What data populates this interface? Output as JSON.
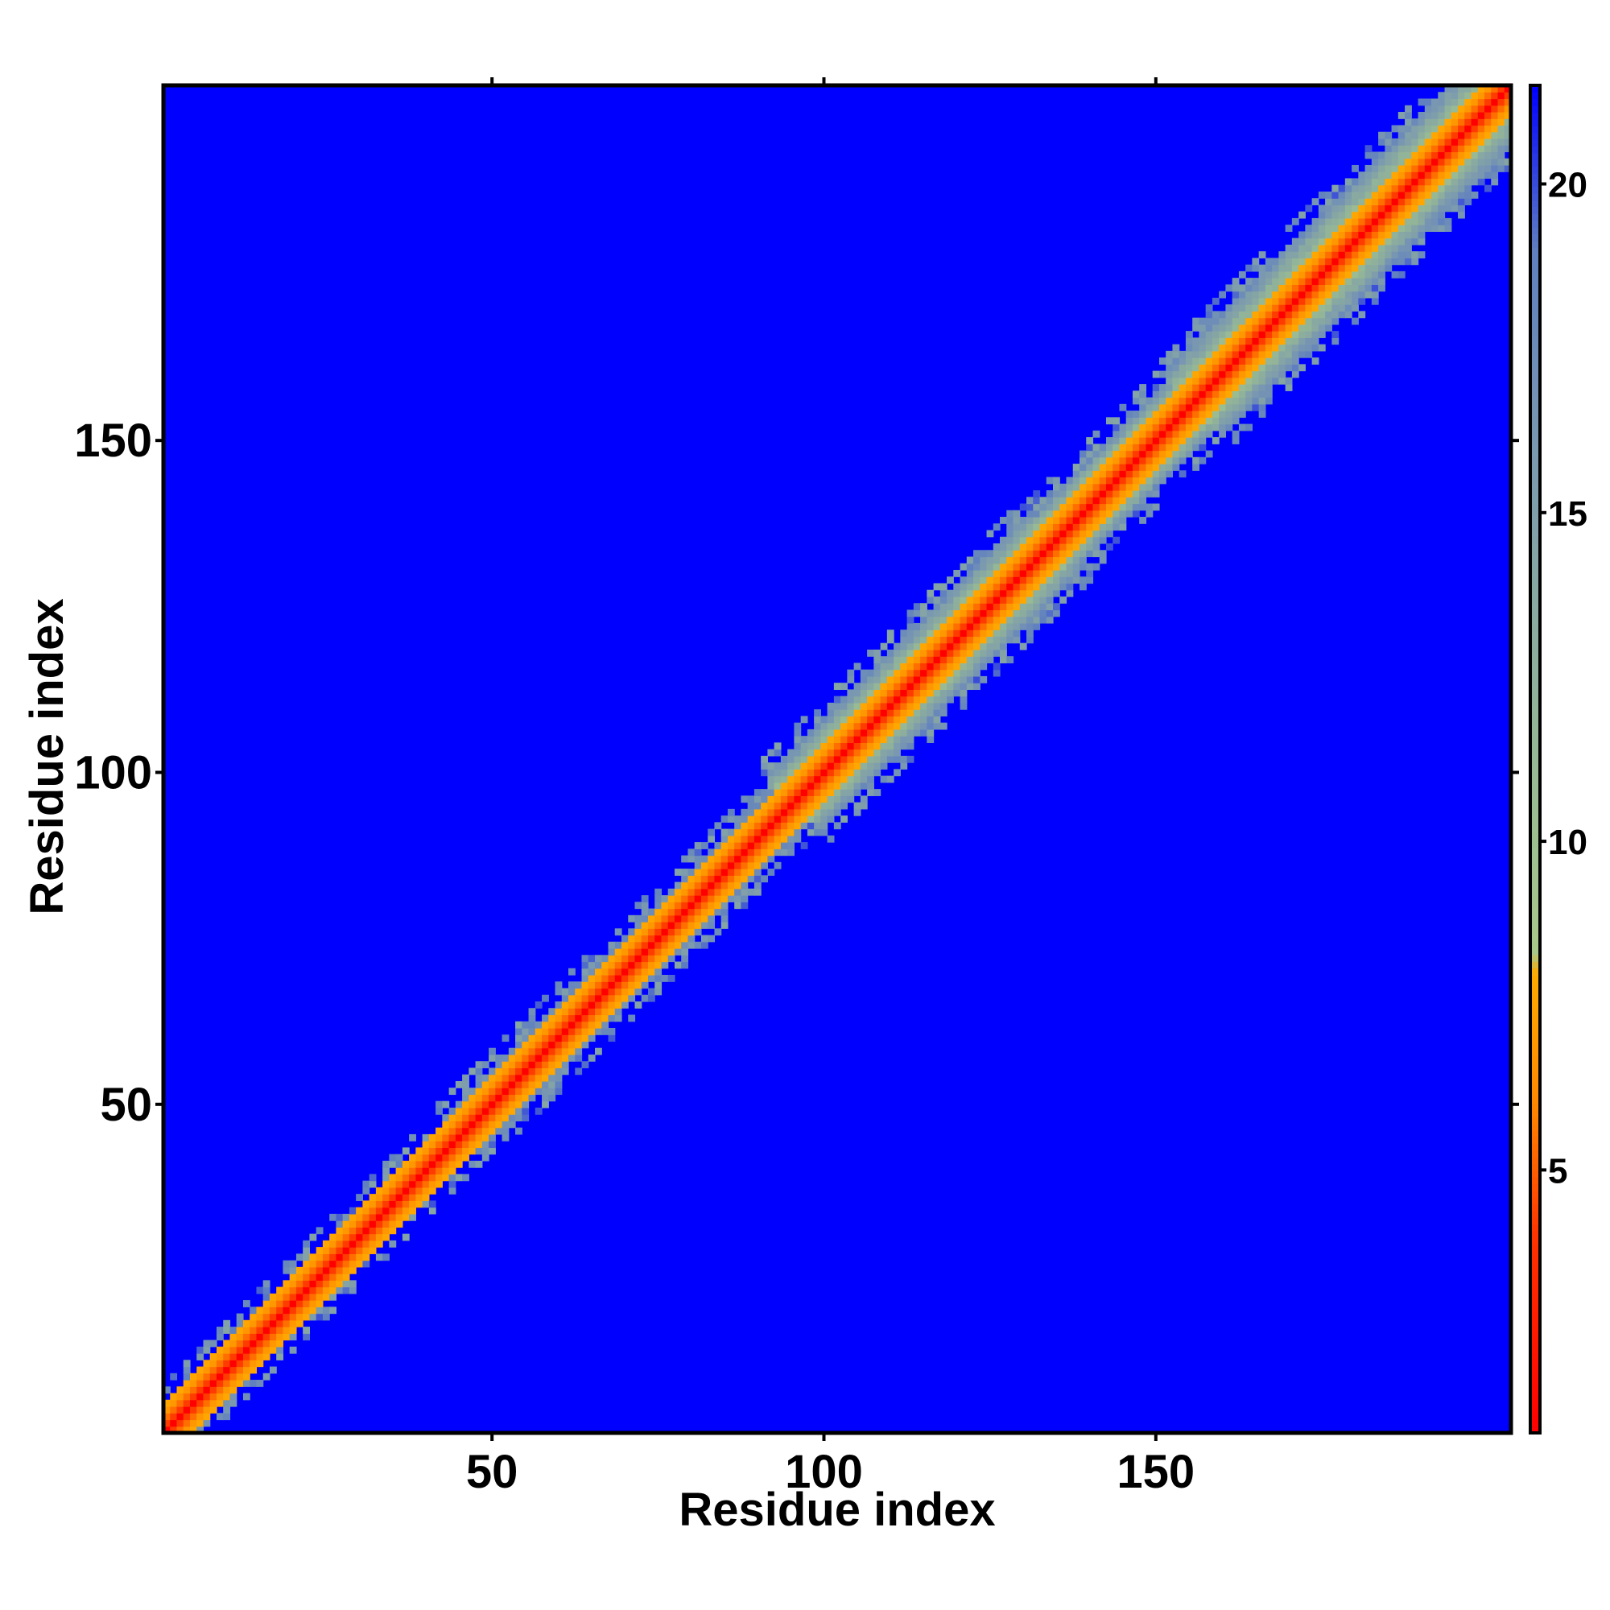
{
  "chart_data": {
    "type": "heatmap",
    "title": "",
    "xlabel": "Residue index",
    "ylabel": "Residue index",
    "x_range": [
      1,
      203
    ],
    "y_range": [
      1,
      203
    ],
    "x_ticks": [
      50,
      100,
      150
    ],
    "y_ticks": [
      50,
      100,
      150
    ],
    "colorbar": {
      "range": [
        1,
        21.5
      ],
      "ticks": [
        5,
        10,
        15,
        20
      ],
      "stops": [
        {
          "value": 1,
          "color": "#ff0000"
        },
        {
          "value": 4,
          "color": "#ff3300"
        },
        {
          "value": 6,
          "color": "#ff8800"
        },
        {
          "value": 8,
          "color": "#ffaa00"
        },
        {
          "value": 8.3,
          "color": "#a8c88a"
        },
        {
          "value": 12,
          "color": "#92b498"
        },
        {
          "value": 16,
          "color": "#7a98b0"
        },
        {
          "value": 19,
          "color": "#5f7fc0"
        },
        {
          "value": 21.5,
          "color": "#0000ff"
        }
      ]
    },
    "background_value": 21.5,
    "description_of_matrix": "symmetric distance map, low values along the diagonal",
    "diagonal_band_halfwidth_by_segment": [
      {
        "from": 1,
        "to": 45,
        "halfwidth": 4
      },
      {
        "from": 45,
        "to": 95,
        "halfwidth": 5
      },
      {
        "from": 95,
        "to": 135,
        "halfwidth": 8
      },
      {
        "from": 135,
        "to": 155,
        "halfwidth": 7
      },
      {
        "from": 155,
        "to": 203,
        "halfwidth": 9
      }
    ]
  },
  "colors": {
    "background": "#0000ff",
    "frame": "#000000"
  }
}
